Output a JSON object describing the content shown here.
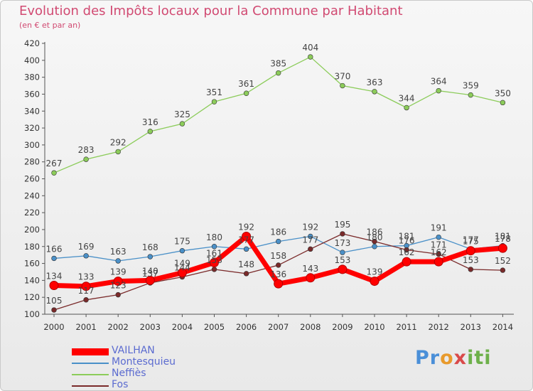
{
  "title": "Evolution des Impôts locaux pour la Commune par Habitant",
  "subtitle": "(en € et par an)",
  "logo": {
    "text": "Proxiti",
    "parts": [
      "Pr",
      "o",
      "x",
      "iti"
    ]
  },
  "colors": {
    "title": "#d14a72",
    "VAILHAN": "#ff0000",
    "Montesquieu": "#4a90c8",
    "Neffies": "#8ccc5a",
    "Fos": "#7a2a2a"
  },
  "chart_data": {
    "type": "line",
    "title": "Evolution des Impôts locaux pour la Commune par Habitant",
    "subtitle": "(en € et par an)",
    "xlabel": "",
    "ylabel": "",
    "ylim": [
      100,
      420
    ],
    "y_ticks": [
      100,
      120,
      140,
      160,
      180,
      200,
      220,
      240,
      260,
      280,
      300,
      320,
      340,
      360,
      380,
      400,
      420
    ],
    "x": [
      "2000",
      "2001",
      "2002",
      "2003",
      "2004",
      "2005",
      "2006",
      "2007",
      "2008",
      "2009",
      "2010",
      "2011",
      "2012",
      "2013",
      "2014"
    ],
    "grid": false,
    "legend_position": "bottom-left",
    "series": [
      {
        "name": "VAILHAN",
        "color": "#ff0000",
        "values": [
          134,
          133,
          139,
          140,
          149,
          161,
          192,
          136,
          143,
          153,
          139,
          162,
          162,
          175,
          178
        ]
      },
      {
        "name": "Montesquieu",
        "color": "#4a90c8",
        "values": [
          166,
          169,
          163,
          168,
          175,
          180,
          177,
          186,
          192,
          173,
          180,
          181,
          191,
          177,
          181
        ]
      },
      {
        "name": "Neffiès",
        "color": "#8ccc5a",
        "values": [
          267,
          283,
          292,
          316,
          325,
          351,
          361,
          385,
          404,
          370,
          363,
          344,
          364,
          359,
          350
        ]
      },
      {
        "name": "Fos",
        "color": "#7a2a2a",
        "values": [
          105,
          117,
          123,
          137,
          144,
          153,
          148,
          158,
          177,
          195,
          186,
          176,
          171,
          153,
          152
        ]
      }
    ]
  }
}
